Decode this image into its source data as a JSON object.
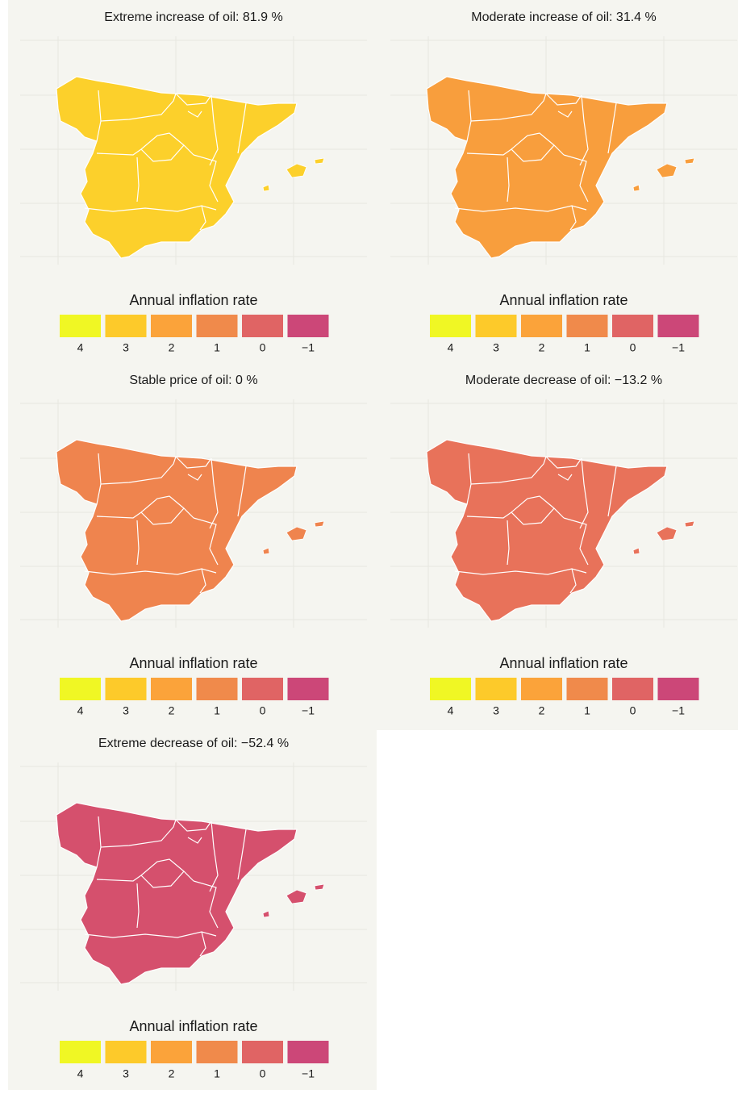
{
  "panels": [
    {
      "title": "Extreme increase of oil:  81.9 %",
      "fill": "#fcd02b"
    },
    {
      "title": "Moderate increase of oil:  31.4 %",
      "fill": "#f89e3d"
    },
    {
      "title": "Stable price of oil:  0 %",
      "fill": "#ef844e"
    },
    {
      "title": "Moderate decrease of oil:  −13.2 %",
      "fill": "#e8725a"
    },
    {
      "title": "Extreme decrease of oil:  −52.4 %",
      "fill": "#d5506d"
    }
  ],
  "legend": {
    "title": "Annual inflation rate",
    "labels": [
      "4",
      "3",
      "2",
      "1",
      "0",
      "−1"
    ],
    "colors": [
      "#f0f724",
      "#fdca2a",
      "#fba33a",
      "#f08a4b",
      "#e06464",
      "#cc4778"
    ]
  }
}
